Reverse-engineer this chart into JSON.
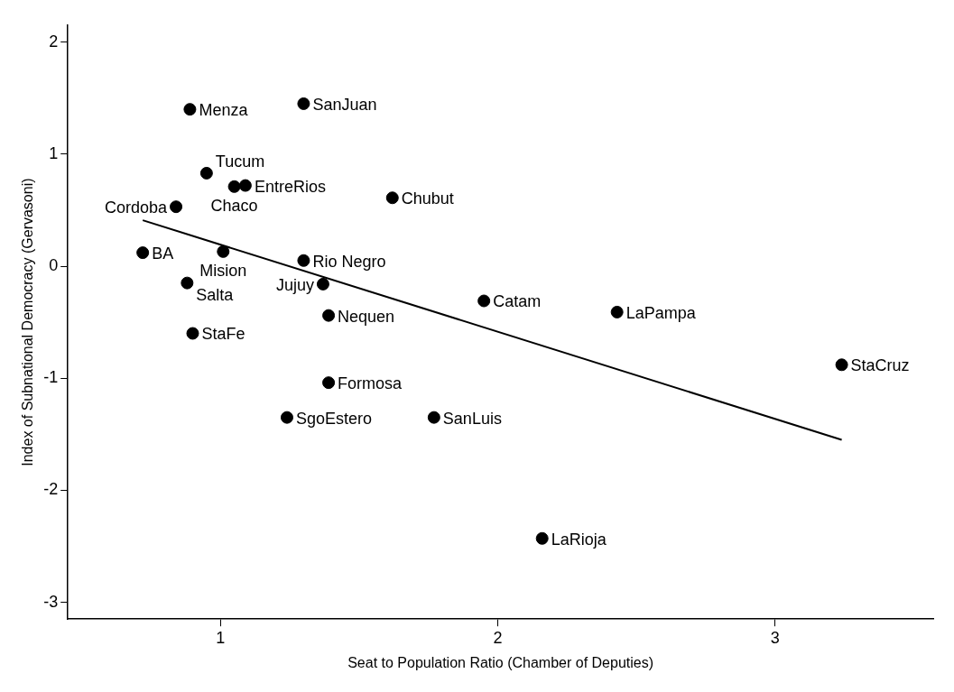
{
  "chart_data": {
    "type": "scatter",
    "xlabel": "Seat to Population Ratio (Chamber of Deputies)",
    "ylabel": "Index of Subnational Democracy (Gervasoni)",
    "xlim": [
      0.45,
      3.57
    ],
    "xticks": [
      1,
      2,
      3
    ],
    "ylim": [
      -3.15,
      2.15
    ],
    "yticks": [
      -3,
      -2,
      -1,
      0,
      1,
      2
    ],
    "grid": false,
    "legend": false,
    "marker": "circle",
    "series": [
      {
        "type": "scatter",
        "color": "#000000",
        "x": [
          0.89,
          1.3,
          0.95,
          1.05,
          1.09,
          0.84,
          1.62,
          0.72,
          1.01,
          1.3,
          0.88,
          1.37,
          1.39,
          0.9,
          1.95,
          2.43,
          3.24,
          1.39,
          1.24,
          1.77,
          2.16
        ],
        "values": [
          1.4,
          1.45,
          0.83,
          0.71,
          0.72,
          0.53,
          0.61,
          0.12,
          0.13,
          0.05,
          -0.15,
          -0.16,
          -0.44,
          -0.6,
          -0.31,
          -0.41,
          -0.88,
          -1.04,
          -1.35,
          -1.35,
          -2.43
        ]
      },
      {
        "type": "line",
        "color": "#000000",
        "marker": "none",
        "x": [
          0.72,
          3.24
        ],
        "values": [
          0.41,
          -1.55
        ]
      }
    ],
    "annotations": [
      {
        "text": "Menza",
        "x": 0.89,
        "y": 1.4
      },
      {
        "text": "SanJuan",
        "x": 1.3,
        "y": 1.45
      },
      {
        "text": "Tucum",
        "x": 0.95,
        "y": 0.83
      },
      {
        "text": "Chaco",
        "x": 1.05,
        "y": 0.71
      },
      {
        "text": "EntreRios",
        "x": 1.09,
        "y": 0.72
      },
      {
        "text": "Cordoba",
        "x": 0.84,
        "y": 0.53
      },
      {
        "text": "Chubut",
        "x": 1.62,
        "y": 0.61
      },
      {
        "text": "BA",
        "x": 0.72,
        "y": 0.12
      },
      {
        "text": "Mision",
        "x": 1.01,
        "y": 0.13
      },
      {
        "text": "Rio Negro",
        "x": 1.3,
        "y": 0.05
      },
      {
        "text": "Salta",
        "x": 0.88,
        "y": -0.15
      },
      {
        "text": "Jujuy",
        "x": 1.37,
        "y": -0.16
      },
      {
        "text": "Nequen",
        "x": 1.39,
        "y": -0.44
      },
      {
        "text": "StaFe",
        "x": 0.9,
        "y": -0.6
      },
      {
        "text": "Catam",
        "x": 1.95,
        "y": -0.31
      },
      {
        "text": "LaPampa",
        "x": 2.43,
        "y": -0.41
      },
      {
        "text": "StaCruz",
        "x": 3.24,
        "y": -0.88
      },
      {
        "text": "Formosa",
        "x": 1.39,
        "y": -1.04
      },
      {
        "text": "SgoEstero",
        "x": 1.24,
        "y": -1.35
      },
      {
        "text": "SanLuis",
        "x": 1.77,
        "y": -1.35
      },
      {
        "text": "LaRioja",
        "x": 2.16,
        "y": -2.43
      }
    ]
  }
}
